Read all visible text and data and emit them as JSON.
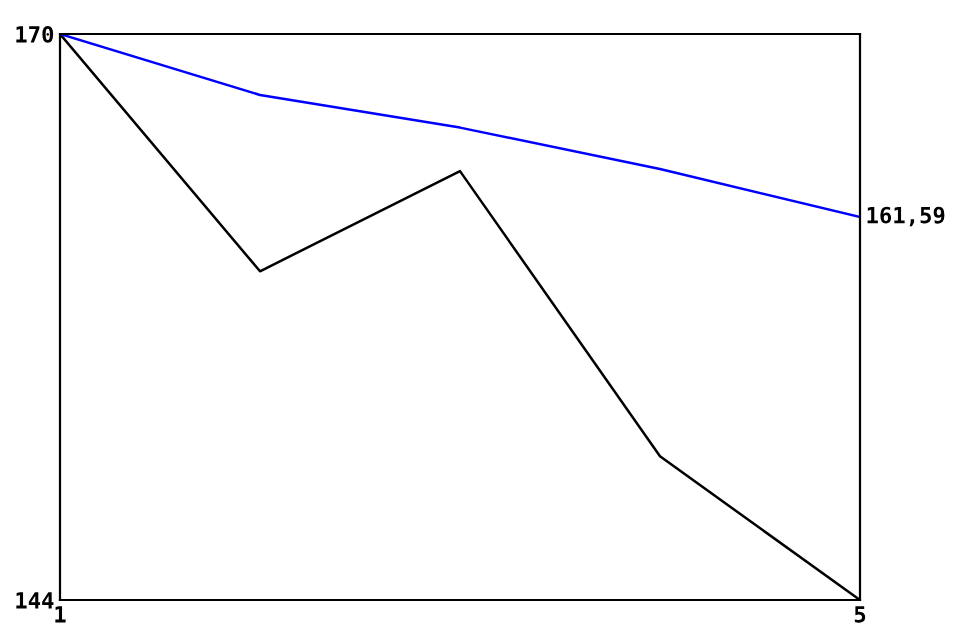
{
  "chart_data": {
    "type": "line",
    "x": [
      1,
      2,
      3,
      4,
      5
    ],
    "series": [
      {
        "color": "#000000",
        "values": [
          170,
          159.1,
          163.7,
          150.6,
          144
        ]
      },
      {
        "color": "#0000ff",
        "values": [
          170,
          167.2,
          165.7,
          163.8,
          161.59
        ],
        "value_labels": [
          null,
          null,
          null,
          null,
          "161,59"
        ]
      }
    ],
    "xlim": [
      1,
      5
    ],
    "ylim": [
      144,
      170
    ],
    "xticks": [
      1,
      5
    ],
    "yticks": [
      144,
      170
    ],
    "grid": false,
    "marker": "none",
    "line_style": "solid"
  }
}
